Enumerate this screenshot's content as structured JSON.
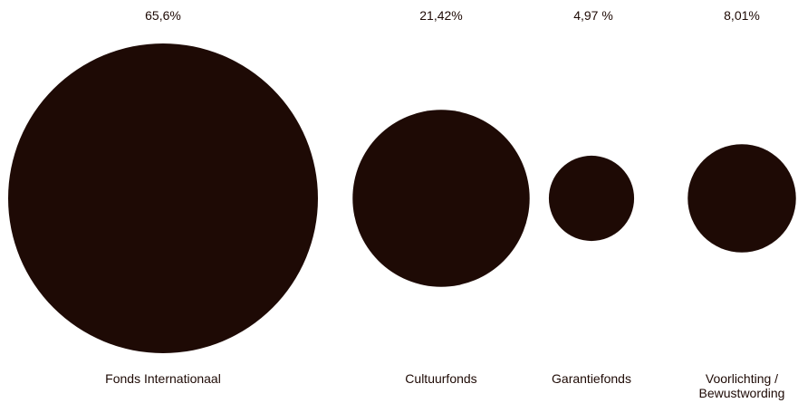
{
  "chart_data": {
    "type": "bubble",
    "title": "",
    "categories": [
      "Fonds Internationaal",
      "Cultuurfonds",
      "Garantiefonds",
      "Voorlichting / Bewustwording"
    ],
    "category_labels": [
      "Fonds Internationaal",
      "Cultuurfonds",
      "Garantiefonds",
      "Voorlichting /\nBewustwording"
    ],
    "values": [
      65.6,
      21.42,
      4.97,
      8.01
    ],
    "value_labels": [
      "65,6%",
      "21,42%",
      "4,97  %",
      "8,01%"
    ],
    "unit": "%",
    "legend": "none",
    "grid": false
  },
  "colors": {
    "bubble": "#1e0a05",
    "text": "#1e0a05",
    "background": "#ffffff"
  }
}
